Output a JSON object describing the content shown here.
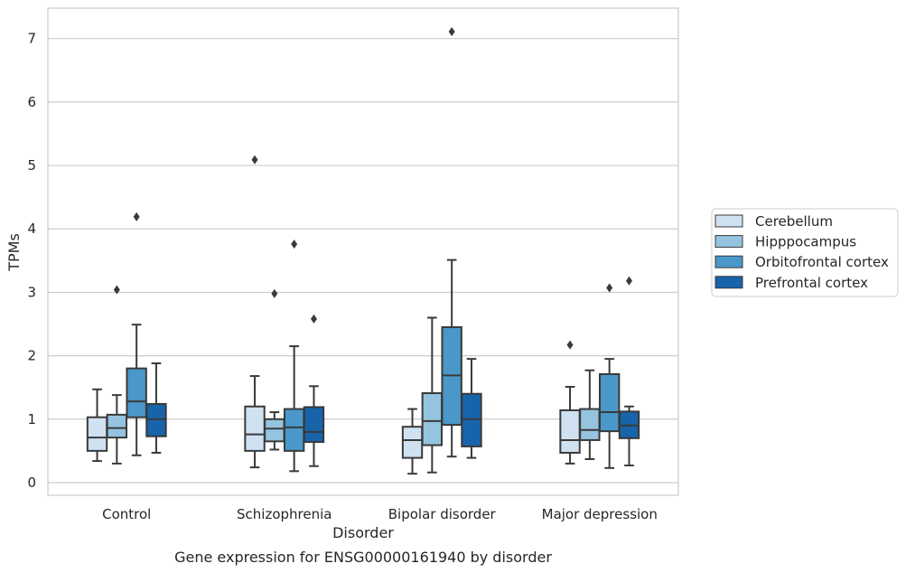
{
  "caption": "Gene expression for ENSG00000161940 by disorder",
  "chart_data": {
    "type": "box",
    "xlabel": "Disorder",
    "ylabel": "TPMs",
    "ylim": [
      -0.2,
      7.48
    ],
    "yticks": [
      0,
      1,
      2,
      3,
      4,
      5,
      6,
      7
    ],
    "grid": true,
    "legend_position": "right",
    "categories": [
      "Control",
      "Schizophrenia",
      "Bipolar disorder",
      "Major depression"
    ],
    "series": [
      {
        "name": "Cerebellum",
        "color": "#d0e1f2",
        "boxes": [
          {
            "whislo": 0.34,
            "q1": 0.5,
            "med": 0.71,
            "q3": 1.03,
            "whishi": 1.47,
            "fliers": []
          },
          {
            "whislo": 0.24,
            "q1": 0.5,
            "med": 0.76,
            "q3": 1.2,
            "whishi": 1.68,
            "fliers": [
              5.09
            ]
          },
          {
            "whislo": 0.14,
            "q1": 0.39,
            "med": 0.67,
            "q3": 0.88,
            "whishi": 1.16,
            "fliers": []
          },
          {
            "whislo": 0.3,
            "q1": 0.47,
            "med": 0.67,
            "q3": 1.14,
            "whishi": 1.51,
            "fliers": [
              2.17
            ]
          }
        ]
      },
      {
        "name": "Hipppocampus",
        "color": "#94c4df",
        "boxes": [
          {
            "whislo": 0.3,
            "q1": 0.71,
            "med": 0.86,
            "q3": 1.07,
            "whishi": 1.38,
            "fliers": [
              3.04
            ]
          },
          {
            "whislo": 0.52,
            "q1": 0.65,
            "med": 0.85,
            "q3": 1.0,
            "whishi": 1.11,
            "fliers": [
              2.98
            ]
          },
          {
            "whislo": 0.16,
            "q1": 0.59,
            "med": 0.97,
            "q3": 1.41,
            "whishi": 2.6,
            "fliers": []
          },
          {
            "whislo": 0.37,
            "q1": 0.67,
            "med": 0.83,
            "q3": 1.16,
            "whishi": 1.77,
            "fliers": []
          }
        ]
      },
      {
        "name": "Orbitofrontal cortex",
        "color": "#4a98c9",
        "boxes": [
          {
            "whislo": 0.43,
            "q1": 1.03,
            "med": 1.28,
            "q3": 1.8,
            "whishi": 2.49,
            "fliers": [
              4.19
            ]
          },
          {
            "whislo": 0.18,
            "q1": 0.5,
            "med": 0.87,
            "q3": 1.16,
            "whishi": 2.15,
            "fliers": [
              3.76
            ]
          },
          {
            "whislo": 0.41,
            "q1": 0.91,
            "med": 1.69,
            "q3": 2.45,
            "whishi": 3.51,
            "fliers": [
              7.11
            ]
          },
          {
            "whislo": 0.23,
            "q1": 0.81,
            "med": 1.11,
            "q3": 1.71,
            "whishi": 1.95,
            "fliers": [
              3.07
            ]
          }
        ]
      },
      {
        "name": "Prefrontal cortex",
        "color": "#1764ab",
        "boxes": [
          {
            "whislo": 0.47,
            "q1": 0.73,
            "med": 1.0,
            "q3": 1.24,
            "whishi": 1.88,
            "fliers": []
          },
          {
            "whislo": 0.26,
            "q1": 0.64,
            "med": 0.8,
            "q3": 1.19,
            "whishi": 1.52,
            "fliers": [
              2.58
            ]
          },
          {
            "whislo": 0.39,
            "q1": 0.57,
            "med": 1.0,
            "q3": 1.4,
            "whishi": 1.95,
            "fliers": []
          },
          {
            "whislo": 0.27,
            "q1": 0.7,
            "med": 0.9,
            "q3": 1.12,
            "whishi": 1.2,
            "fliers": [
              3.18
            ]
          }
        ]
      }
    ]
  }
}
